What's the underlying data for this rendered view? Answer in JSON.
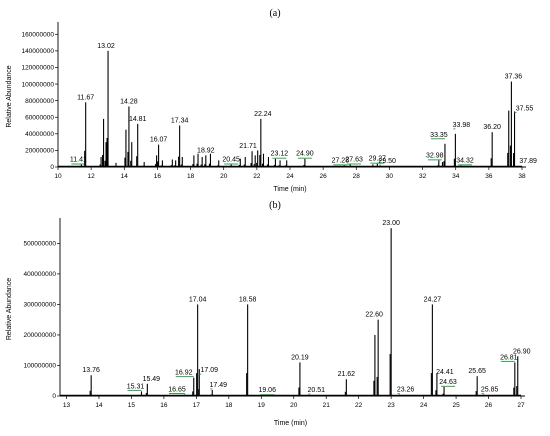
{
  "chart_data": [
    {
      "panel": "(a)",
      "type": "line",
      "xlabel": "Time (min)",
      "ylabel": "Relative Abundance",
      "xlim": [
        10,
        38
      ],
      "ylim": [
        0,
        170000000
      ],
      "x_ticks": [
        10,
        12,
        14,
        16,
        18,
        20,
        22,
        24,
        26,
        28,
        30,
        32,
        34,
        36,
        38
      ],
      "y_ticks": [
        0,
        20000000,
        40000000,
        60000000,
        80000000,
        100000000,
        120000000,
        140000000,
        160000000
      ],
      "y_tick_labels": [
        "0",
        "20000000",
        "40000000",
        "60000000",
        "80000000",
        "100000000",
        "120000000",
        "140000000",
        "160000000"
      ],
      "peaks": [
        {
          "x": 11.41,
          "y": 3000000,
          "label": "11.41"
        },
        {
          "x": 11.67,
          "y": 78000000,
          "label": "11.67"
        },
        {
          "x": 12.6,
          "y": 12000000
        },
        {
          "x": 12.75,
          "y": 58000000
        },
        {
          "x": 12.9,
          "y": 30000000
        },
        {
          "x": 13.02,
          "y": 140000000,
          "label": "13.02"
        },
        {
          "x": 13.5,
          "y": 5000000
        },
        {
          "x": 14.1,
          "y": 45000000
        },
        {
          "x": 14.28,
          "y": 73000000,
          "label": "14.28"
        },
        {
          "x": 14.45,
          "y": 30000000
        },
        {
          "x": 14.81,
          "y": 52000000,
          "label": "14.81"
        },
        {
          "x": 15.2,
          "y": 6000000
        },
        {
          "x": 15.95,
          "y": 14000000
        },
        {
          "x": 16.07,
          "y": 27000000,
          "label": "16.07"
        },
        {
          "x": 16.3,
          "y": 8000000
        },
        {
          "x": 16.9,
          "y": 9000000
        },
        {
          "x": 17.1,
          "y": 8000000
        },
        {
          "x": 17.34,
          "y": 50000000,
          "label": "17.34"
        },
        {
          "x": 17.5,
          "y": 12000000
        },
        {
          "x": 18.2,
          "y": 14000000
        },
        {
          "x": 18.45,
          "y": 16000000
        },
        {
          "x": 18.7,
          "y": 12000000
        },
        {
          "x": 18.92,
          "y": 14000000,
          "label": "18.92"
        },
        {
          "x": 19.2,
          "y": 16000000
        },
        {
          "x": 19.7,
          "y": 8000000
        },
        {
          "x": 20.45,
          "y": 3000000,
          "label": "20.45"
        },
        {
          "x": 21.0,
          "y": 10000000
        },
        {
          "x": 21.3,
          "y": 12000000
        },
        {
          "x": 21.71,
          "y": 19000000,
          "label": "21.71"
        },
        {
          "x": 21.9,
          "y": 14000000
        },
        {
          "x": 22.05,
          "y": 20000000
        },
        {
          "x": 22.24,
          "y": 58000000,
          "label": "22.24"
        },
        {
          "x": 22.4,
          "y": 16000000
        },
        {
          "x": 22.7,
          "y": 12000000
        },
        {
          "x": 23.12,
          "y": 10000000,
          "label": "23.12"
        },
        {
          "x": 23.4,
          "y": 8000000
        },
        {
          "x": 23.8,
          "y": 8000000
        },
        {
          "x": 24.9,
          "y": 10000000,
          "label": "24.90"
        },
        {
          "x": 27.28,
          "y": 2000000,
          "label": "27.28"
        },
        {
          "x": 27.63,
          "y": 3000000,
          "label": "27.63"
        },
        {
          "x": 29.0,
          "y": 3000000
        },
        {
          "x": 29.27,
          "y": 4000000,
          "label": "29.27"
        },
        {
          "x": 29.5,
          "y": 1000000,
          "label": "29.50"
        },
        {
          "x": 32.98,
          "y": 8000000,
          "label": "32.98"
        },
        {
          "x": 33.2,
          "y": 6000000
        },
        {
          "x": 33.35,
          "y": 28000000,
          "label": "33.35"
        },
        {
          "x": 33.98,
          "y": 40000000,
          "label": "33.98"
        },
        {
          "x": 34.32,
          "y": 2000000,
          "label": "34.32"
        },
        {
          "x": 36.2,
          "y": 42000000,
          "label": "36.20"
        },
        {
          "x": 37.2,
          "y": 68000000
        },
        {
          "x": 37.36,
          "y": 103000000,
          "label": "37.36"
        },
        {
          "x": 37.55,
          "y": 67000000,
          "label": "37.55"
        },
        {
          "x": 37.89,
          "y": 1000000,
          "label": "37.89"
        }
      ]
    },
    {
      "panel": "(b)",
      "type": "line",
      "xlabel": "Time (min)",
      "ylabel": "Relative Abundance",
      "xlim": [
        12.8,
        27
      ],
      "ylim": [
        0,
        570000000
      ],
      "x_ticks": [
        13,
        14,
        15,
        16,
        17,
        18,
        19,
        20,
        21,
        22,
        23,
        24,
        25,
        26,
        27
      ],
      "y_ticks": [
        0,
        100000000,
        200000000,
        300000000,
        400000000,
        500000000
      ],
      "y_tick_labels": [
        "0",
        "100000000",
        "200000000",
        "300000000",
        "400000000",
        "500000000"
      ],
      "peaks": [
        {
          "x": 13.76,
          "y": 68000000,
          "label": "13.76"
        },
        {
          "x": 15.31,
          "y": 15000000,
          "label": "15.31"
        },
        {
          "x": 15.49,
          "y": 40000000,
          "label": "15.49"
        },
        {
          "x": 16.65,
          "y": 5000000,
          "label": "16.65"
        },
        {
          "x": 16.92,
          "y": 60000000,
          "label": "16.92"
        },
        {
          "x": 17.04,
          "y": 300000000,
          "label": "17.04"
        },
        {
          "x": 17.09,
          "y": 88000000,
          "label": "17.09"
        },
        {
          "x": 17.49,
          "y": 20000000,
          "label": "17.49"
        },
        {
          "x": 18.58,
          "y": 300000000,
          "label": "18.58"
        },
        {
          "x": 19.06,
          "y": 3000000,
          "label": "19.06"
        },
        {
          "x": 20.19,
          "y": 110000000,
          "label": "20.19"
        },
        {
          "x": 20.51,
          "y": 3000000,
          "label": "20.51"
        },
        {
          "x": 21.62,
          "y": 55000000,
          "label": "21.62"
        },
        {
          "x": 22.5,
          "y": 200000000
        },
        {
          "x": 22.6,
          "y": 250000000,
          "label": "22.60"
        },
        {
          "x": 23.0,
          "y": 550000000,
          "label": "23.00"
        },
        {
          "x": 23.26,
          "y": 5000000,
          "label": "23.26"
        },
        {
          "x": 24.27,
          "y": 300000000,
          "label": "24.27"
        },
        {
          "x": 24.41,
          "y": 75000000,
          "label": "24.41"
        },
        {
          "x": 24.63,
          "y": 30000000,
          "label": "24.63"
        },
        {
          "x": 25.65,
          "y": 65000000,
          "label": "25.65"
        },
        {
          "x": 25.85,
          "y": 5000000,
          "label": "25.85"
        },
        {
          "x": 26.81,
          "y": 110000000,
          "label": "26.81"
        },
        {
          "x": 26.9,
          "y": 130000000,
          "label": "26.90"
        }
      ]
    }
  ]
}
